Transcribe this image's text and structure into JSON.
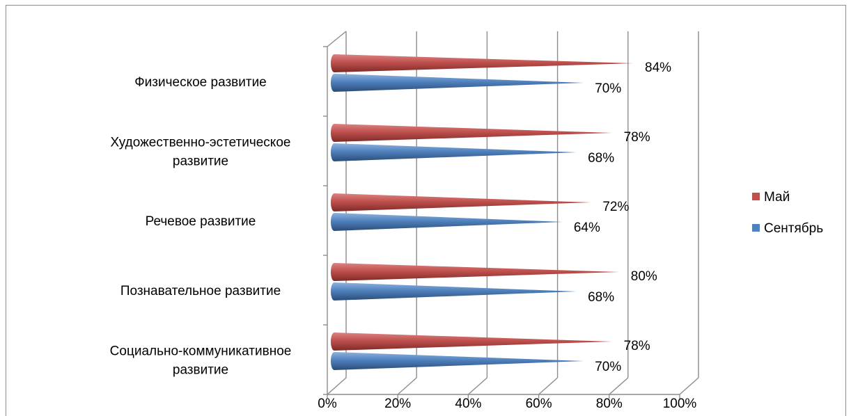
{
  "chart_data": {
    "type": "bar",
    "orientation": "horizontal",
    "style": "3d-cone",
    "categories": [
      "Физическое развитие",
      "Художественно-эстетическое развитие",
      "Речевое развитие",
      "Познавательное развитие",
      "Социально-коммуникативное развитие"
    ],
    "category_lines": [
      [
        "Физическое развитие"
      ],
      [
        "Художественно-эстетическое",
        "развитие"
      ],
      [
        "Речевое развитие"
      ],
      [
        "Познавательное развитие"
      ],
      [
        "Социально-коммуникативное",
        "развитие"
      ]
    ],
    "series": [
      {
        "name": "Май",
        "color": "#c0504d",
        "values": [
          84,
          78,
          72,
          80,
          78
        ],
        "labels": [
          "84%",
          "78%",
          "72%",
          "80%",
          "78%"
        ]
      },
      {
        "name": "Сентябрь",
        "color": "#4f81bd",
        "values": [
          70,
          68,
          64,
          68,
          70
        ],
        "labels": [
          "70%",
          "68%",
          "64%",
          "68%",
          "70%"
        ]
      }
    ],
    "x_ticks": [
      "0%",
      "20%",
      "40%",
      "60%",
      "80%",
      "100%"
    ],
    "xlim": [
      0,
      100
    ],
    "grid": true,
    "legend_position": "right"
  }
}
